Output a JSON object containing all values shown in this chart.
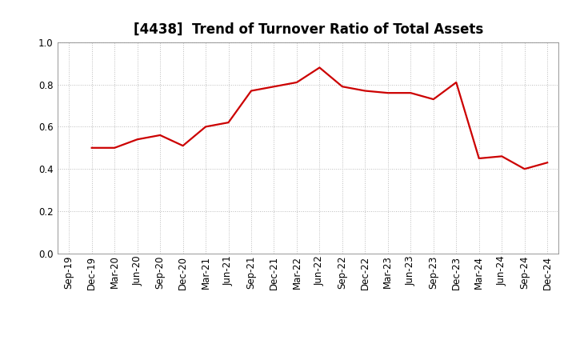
{
  "title": "[4438]  Trend of Turnover Ratio of Total Assets",
  "x_labels": [
    "Sep-19",
    "Dec-19",
    "Mar-20",
    "Jun-20",
    "Sep-20",
    "Dec-20",
    "Mar-21",
    "Jun-21",
    "Sep-21",
    "Dec-21",
    "Mar-22",
    "Jun-22",
    "Sep-22",
    "Dec-22",
    "Mar-23",
    "Jun-23",
    "Sep-23",
    "Dec-23",
    "Mar-24",
    "Jun-24",
    "Sep-24",
    "Dec-24"
  ],
  "y_values": [
    null,
    0.5,
    0.5,
    0.54,
    0.56,
    0.51,
    0.6,
    0.62,
    0.77,
    0.79,
    0.81,
    0.88,
    0.79,
    0.77,
    0.76,
    0.76,
    0.73,
    0.81,
    0.45,
    0.46,
    0.4,
    0.43
  ],
  "ylim": [
    0.0,
    1.0
  ],
  "yticks": [
    0.0,
    0.2,
    0.4,
    0.6,
    0.8,
    1.0
  ],
  "line_color": "#cc0000",
  "line_width": 1.6,
  "grid_color": "#bbbbbb",
  "background_color": "#ffffff",
  "title_fontsize": 12,
  "tick_fontsize": 8.5
}
